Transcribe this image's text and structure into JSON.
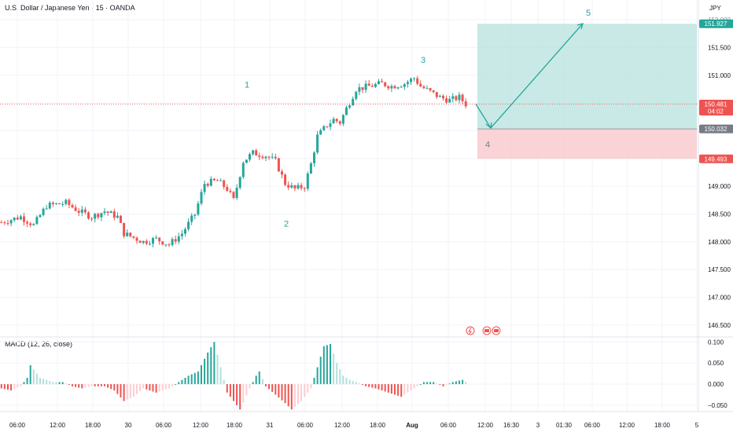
{
  "header": {
    "title": "U.S. Dollar / Japanese Yen · 15 · OANDA"
  },
  "currency": "JPY",
  "macd_label": "MACD (12, 26, close)",
  "colors": {
    "up": "#26a69a",
    "down": "#ef5350",
    "grid": "#f0f3fa",
    "target_zone": "#b2dfdb",
    "stop_zone": "#f8c8cc",
    "last_price": "#ef5350"
  },
  "chart_data": {
    "type": "candlestick",
    "price_axis": {
      "ticks": [
        146.5,
        147.0,
        147.5,
        148.0,
        148.5,
        149.0,
        149.5,
        150.0,
        150.5,
        151.0,
        151.5,
        152.0
      ],
      "tick_labels": [
        "146.500",
        "147.000",
        "147.500",
        "148.000",
        "148.500",
        "149.000",
        "149.500",
        "150.000",
        "150.500",
        "151.000",
        "151.500",
        "152.000"
      ],
      "ylim": [
        146.3,
        152.1
      ]
    },
    "time_axis": {
      "labels": [
        "06:00",
        "12:00",
        "18:00",
        "30",
        "06:00",
        "12:00",
        "18:00",
        "31",
        "06:00",
        "12:00",
        "18:00",
        "Aug",
        "06:00",
        "12:00",
        "16:30",
        "3",
        "01:30",
        "06:00",
        "12:00",
        "18:00",
        "5"
      ]
    },
    "price_badges": [
      {
        "label": "151.927",
        "value": 151.927,
        "color": "#26a69a"
      },
      {
        "label": "150.481",
        "sub": "04:02",
        "value": 150.481,
        "color": "#ef5350"
      },
      {
        "label": "150.032",
        "value": 150.032,
        "color": "#787b86"
      },
      {
        "label": "149.493",
        "value": 149.493,
        "color": "#ef5350"
      }
    ],
    "last_price": 150.481,
    "position": {
      "entry": 150.032,
      "target": 151.927,
      "stop": 149.493
    },
    "wave_labels": [
      {
        "label": "1",
        "price": 150.78
      },
      {
        "label": "2",
        "price": 148.27
      },
      {
        "label": "3",
        "price": 151.22
      },
      {
        "label": "4",
        "price": 149.7
      },
      {
        "label": "5",
        "price": 152.07
      }
    ],
    "projection": [
      {
        "price": 150.48
      },
      {
        "price": 150.05
      },
      {
        "price": 151.93
      }
    ],
    "anchors": [
      [
        0,
        148.35
      ],
      [
        6,
        148.45
      ],
      [
        10,
        148.3
      ],
      [
        14,
        148.65
      ],
      [
        20,
        148.7
      ],
      [
        24,
        148.55
      ],
      [
        28,
        148.45
      ],
      [
        32,
        148.55
      ],
      [
        36,
        148.45
      ],
      [
        38,
        148.15
      ],
      [
        44,
        148.0
      ],
      [
        48,
        148.05
      ],
      [
        52,
        147.95
      ],
      [
        56,
        148.15
      ],
      [
        60,
        148.5
      ],
      [
        63,
        149.05
      ],
      [
        67,
        149.1
      ],
      [
        70,
        148.95
      ],
      [
        72,
        148.75
      ],
      [
        75,
        149.45
      ],
      [
        78,
        149.6
      ],
      [
        82,
        149.55
      ],
      [
        85,
        149.45
      ],
      [
        88,
        149.05
      ],
      [
        91,
        148.95
      ],
      [
        94,
        149.0
      ],
      [
        96,
        149.4
      ],
      [
        98,
        149.9
      ],
      [
        101,
        150.1
      ],
      [
        103,
        150.2
      ],
      [
        105,
        150.15
      ],
      [
        107,
        150.4
      ],
      [
        110,
        150.75
      ],
      [
        114,
        150.8
      ],
      [
        118,
        150.85
      ],
      [
        121,
        150.8
      ],
      [
        125,
        150.85
      ],
      [
        128,
        150.95
      ],
      [
        130,
        150.8
      ],
      [
        133,
        150.7
      ],
      [
        136,
        150.6
      ],
      [
        139,
        150.55
      ],
      [
        142,
        150.6
      ],
      [
        144,
        150.48
      ]
    ],
    "macd_axis": {
      "ticks": [
        0.1,
        0.05,
        0.0,
        -0.05
      ],
      "tick_labels": [
        "0.100",
        "0.050",
        "0.000",
        "−0.050"
      ],
      "ylim": [
        -0.065,
        0.11
      ]
    },
    "macd_anchors": [
      [
        0,
        -0.01
      ],
      [
        3,
        -0.015
      ],
      [
        6,
        -0.005
      ],
      [
        8,
        0.015
      ],
      [
        9,
        0.045
      ],
      [
        12,
        0.015
      ],
      [
        16,
        0.005
      ],
      [
        19,
        0.005
      ],
      [
        22,
        -0.005
      ],
      [
        25,
        -0.01
      ],
      [
        28,
        -0.005
      ],
      [
        32,
        -0.005
      ],
      [
        35,
        -0.015
      ],
      [
        38,
        -0.04
      ],
      [
        41,
        -0.03
      ],
      [
        44,
        -0.01
      ],
      [
        48,
        -0.02
      ],
      [
        52,
        -0.01
      ],
      [
        55,
        0.005
      ],
      [
        58,
        0.02
      ],
      [
        61,
        0.03
      ],
      [
        64,
        0.075
      ],
      [
        66,
        0.1
      ],
      [
        68,
        0.04
      ],
      [
        70,
        -0.02
      ],
      [
        73,
        -0.05
      ],
      [
        74,
        -0.06
      ],
      [
        77,
        -0.01
      ],
      [
        79,
        0.02
      ],
      [
        80,
        0.03
      ],
      [
        82,
        -0.005
      ],
      [
        85,
        -0.025
      ],
      [
        88,
        -0.045
      ],
      [
        90,
        -0.06
      ],
      [
        93,
        -0.04
      ],
      [
        96,
        -0.01
      ],
      [
        98,
        0.04
      ],
      [
        100,
        0.09
      ],
      [
        102,
        0.095
      ],
      [
        104,
        0.05
      ],
      [
        106,
        0.02
      ],
      [
        108,
        0.01
      ],
      [
        110,
        0.005
      ],
      [
        113,
        -0.005
      ],
      [
        116,
        -0.01
      ],
      [
        120,
        -0.02
      ],
      [
        124,
        -0.03
      ],
      [
        128,
        -0.01
      ],
      [
        131,
        0.005
      ],
      [
        134,
        0.005
      ],
      [
        137,
        -0.005
      ],
      [
        140,
        0.005
      ],
      [
        143,
        0.01
      ],
      [
        144,
        0.005
      ]
    ]
  }
}
